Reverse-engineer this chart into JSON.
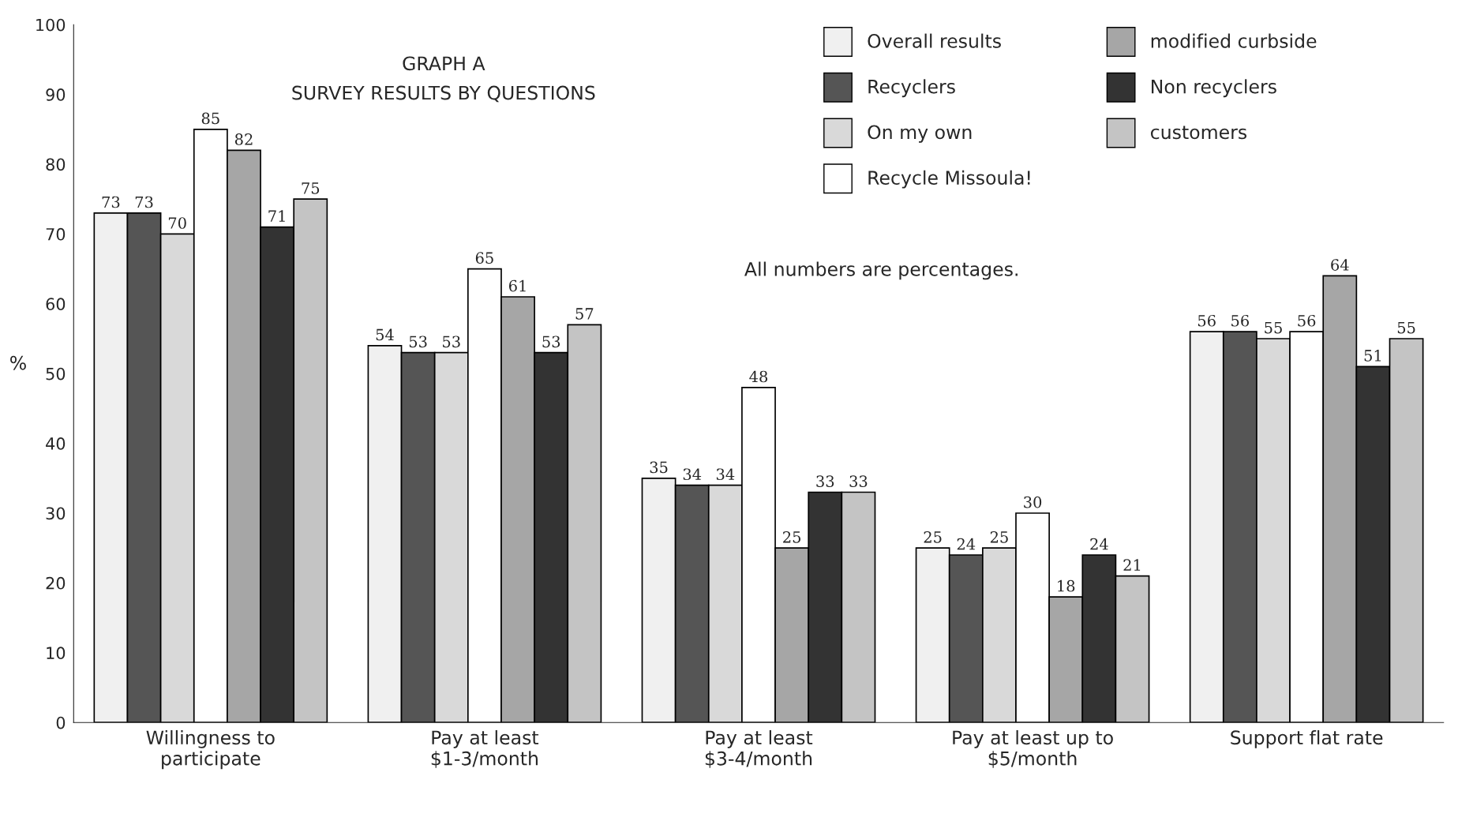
{
  "chart_data": {
    "type": "bar",
    "title": "GRAPH A\nSURVEY RESULTS BY QUESTIONS",
    "ylabel": "%",
    "categories": [
      "Willingness to\nparticipate",
      "Pay at least\n$1-3/month",
      "Pay at least\n$3-4/month",
      "Pay at least up to\n$5/month",
      "Support flat rate"
    ],
    "series": [
      {
        "name": "Overall results",
        "color": "#f0f0f0",
        "values": [
          73,
          54,
          35,
          25,
          56
        ]
      },
      {
        "name": "Recyclers",
        "color": "#555555",
        "values": [
          73,
          53,
          34,
          24,
          56
        ]
      },
      {
        "name": "On my own",
        "color": "#d9d9d9",
        "values": [
          70,
          53,
          34,
          25,
          55
        ]
      },
      {
        "name": "Recycle Missoula!",
        "color": "#ffffff",
        "values": [
          85,
          65,
          48,
          30,
          56
        ]
      },
      {
        "name": "modified curbside",
        "color": "#a6a6a6",
        "values": [
          82,
          61,
          25,
          18,
          64
        ]
      },
      {
        "name": "Non recyclers",
        "color": "#333333",
        "values": [
          71,
          53,
          33,
          24,
          51
        ]
      },
      {
        "name": "customers",
        "color": "#c4c4c4",
        "values": [
          75,
          57,
          33,
          21,
          55
        ]
      }
    ],
    "ylim": [
      0,
      100
    ],
    "yticks": [
      0,
      10,
      20,
      30,
      40,
      50,
      60,
      70,
      80,
      90,
      100
    ],
    "data_labels": true,
    "legend": "top right",
    "grid": false,
    "annotations": [
      "All numbers are percentages."
    ]
  }
}
